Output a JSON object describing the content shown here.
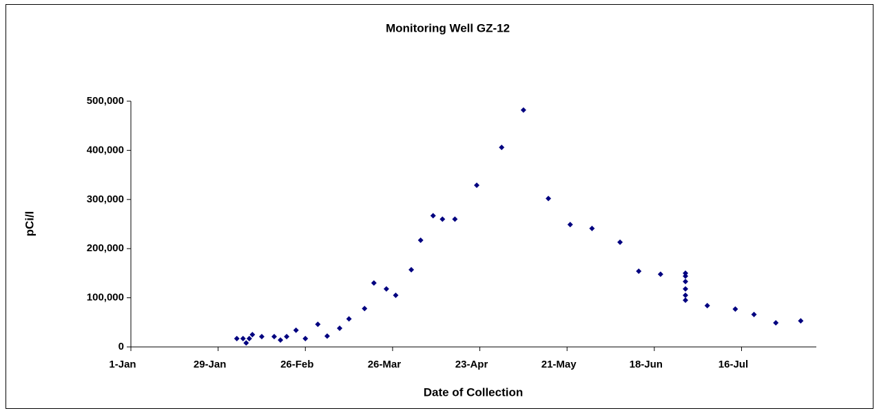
{
  "chart_data": {
    "type": "scatter",
    "title": "Monitoring Well GZ-12",
    "xlabel": "Date of Collection",
    "ylabel": "pCi/l",
    "color": "#000080",
    "x": [
      34,
      36,
      37,
      38,
      39,
      42,
      46,
      48,
      50,
      53,
      56,
      60,
      63,
      67,
      70,
      75,
      78,
      82,
      85,
      90,
      93,
      97,
      100,
      104,
      111,
      119,
      126,
      134,
      141,
      148,
      157,
      163,
      170,
      178,
      178,
      178,
      178,
      178,
      178,
      185,
      194,
      200,
      207,
      215
    ],
    "values": [
      17000,
      17000,
      8000,
      17000,
      25000,
      21000,
      21000,
      14000,
      21000,
      34000,
      17000,
      46000,
      22000,
      38000,
      57000,
      78000,
      130000,
      118000,
      105000,
      157000,
      217000,
      267000,
      260000,
      260000,
      329000,
      406000,
      482000,
      302000,
      249000,
      241000,
      213000,
      154000,
      148000,
      150000,
      144000,
      133000,
      118000,
      105000,
      95000,
      84000,
      77000,
      66000,
      49000,
      53000
    ],
    "xlim": [
      0,
      220
    ],
    "xticks": [
      {
        "value": 0,
        "label": "1-Jan"
      },
      {
        "value": 28,
        "label": "29-Jan"
      },
      {
        "value": 56,
        "label": "26-Feb"
      },
      {
        "value": 84,
        "label": "26-Mar"
      },
      {
        "value": 112,
        "label": "23-Apr"
      },
      {
        "value": 140,
        "label": "21-May"
      },
      {
        "value": 168,
        "label": "18-Jun"
      },
      {
        "value": 196,
        "label": "16-Jul"
      }
    ],
    "ylim": [
      0,
      500000
    ],
    "yticks": [
      0,
      {
        "value": 100000,
        "label": "100,000"
      },
      {
        "value": 200000,
        "label": "200,000"
      },
      {
        "value": 300000,
        "label": "300,000"
      },
      {
        "value": 400000,
        "label": "400,000"
      },
      {
        "value": 500000,
        "label": "500,000"
      }
    ]
  }
}
